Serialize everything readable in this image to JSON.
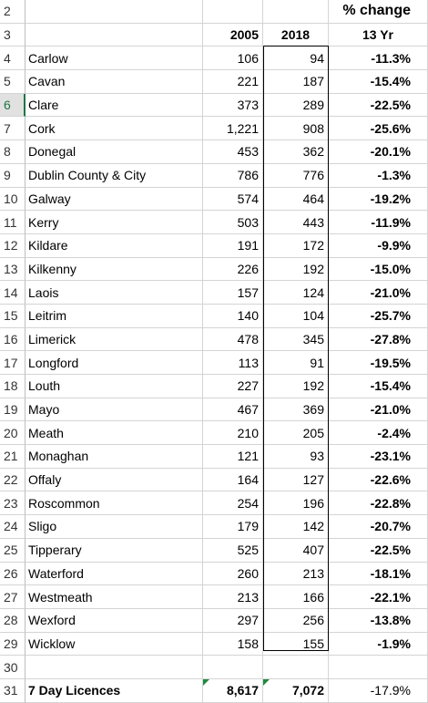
{
  "header": {
    "title": "% change",
    "col_2005": "2005",
    "col_2018": "2018",
    "col_pct_sub": "13 Yr"
  },
  "row_numbers": {
    "title_row": "2",
    "header_row": "3",
    "blank_row": "30",
    "total_row": "31"
  },
  "rows": [
    {
      "n": "4",
      "name": "Carlow",
      "y2005": "106",
      "y2018": "94",
      "pct": "-11.3%"
    },
    {
      "n": "5",
      "name": "Cavan",
      "y2005": "221",
      "y2018": "187",
      "pct": "-15.4%"
    },
    {
      "n": "6",
      "name": "Clare",
      "y2005": "373",
      "y2018": "289",
      "pct": "-22.5%"
    },
    {
      "n": "7",
      "name": "Cork",
      "y2005": "1,221",
      "y2018": "908",
      "pct": "-25.6%"
    },
    {
      "n": "8",
      "name": "Donegal",
      "y2005": "453",
      "y2018": "362",
      "pct": "-20.1%"
    },
    {
      "n": "9",
      "name": "Dublin County & City",
      "y2005": "786",
      "y2018": "776",
      "pct": "-1.3%"
    },
    {
      "n": "10",
      "name": "Galway",
      "y2005": "574",
      "y2018": "464",
      "pct": "-19.2%"
    },
    {
      "n": "11",
      "name": "Kerry",
      "y2005": "503",
      "y2018": "443",
      "pct": "-11.9%"
    },
    {
      "n": "12",
      "name": "Kildare",
      "y2005": "191",
      "y2018": "172",
      "pct": "-9.9%"
    },
    {
      "n": "13",
      "name": "Kilkenny",
      "y2005": "226",
      "y2018": "192",
      "pct": "-15.0%"
    },
    {
      "n": "14",
      "name": "Laois",
      "y2005": "157",
      "y2018": "124",
      "pct": "-21.0%"
    },
    {
      "n": "15",
      "name": "Leitrim",
      "y2005": "140",
      "y2018": "104",
      "pct": "-25.7%"
    },
    {
      "n": "16",
      "name": "Limerick",
      "y2005": "478",
      "y2018": "345",
      "pct": "-27.8%"
    },
    {
      "n": "17",
      "name": "Longford",
      "y2005": "113",
      "y2018": "91",
      "pct": "-19.5%"
    },
    {
      "n": "18",
      "name": "Louth",
      "y2005": "227",
      "y2018": "192",
      "pct": "-15.4%"
    },
    {
      "n": "19",
      "name": "Mayo",
      "y2005": "467",
      "y2018": "369",
      "pct": "-21.0%"
    },
    {
      "n": "20",
      "name": "Meath",
      "y2005": "210",
      "y2018": "205",
      "pct": "-2.4%"
    },
    {
      "n": "21",
      "name": "Monaghan",
      "y2005": "121",
      "y2018": "93",
      "pct": "-23.1%"
    },
    {
      "n": "22",
      "name": "Offaly",
      "y2005": "164",
      "y2018": "127",
      "pct": "-22.6%"
    },
    {
      "n": "23",
      "name": "Roscommon",
      "y2005": "254",
      "y2018": "196",
      "pct": "-22.8%"
    },
    {
      "n": "24",
      "name": "Sligo",
      "y2005": "179",
      "y2018": "142",
      "pct": "-20.7%"
    },
    {
      "n": "25",
      "name": "Tipperary",
      "y2005": "525",
      "y2018": "407",
      "pct": "-22.5%"
    },
    {
      "n": "26",
      "name": "Waterford",
      "y2005": "260",
      "y2018": "213",
      "pct": "-18.1%"
    },
    {
      "n": "27",
      "name": "Westmeath",
      "y2005": "213",
      "y2018": "166",
      "pct": "-22.1%"
    },
    {
      "n": "28",
      "name": "Wexford",
      "y2005": "297",
      "y2018": "256",
      "pct": "-13.8%"
    },
    {
      "n": "29",
      "name": "Wicklow",
      "y2005": "158",
      "y2018": "155",
      "pct": "-1.9%"
    }
  ],
  "total": {
    "label": "7 Day Licences",
    "y2005": "8,617",
    "y2018": "7,072",
    "pct": "-17.9%"
  },
  "style": {
    "selected_row_color": "#217346",
    "error_indicator_color": "#1e8b3d"
  }
}
